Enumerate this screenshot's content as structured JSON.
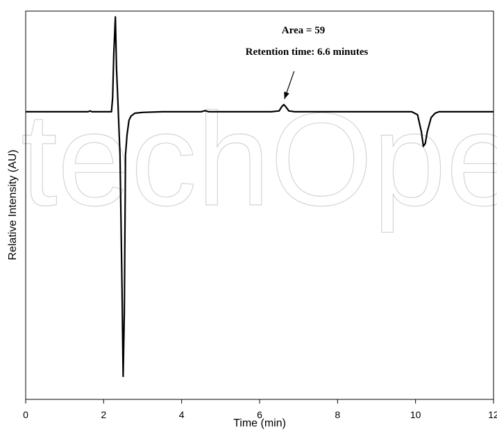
{
  "chart_data": {
    "type": "line",
    "xlabel": "Time (min)",
    "ylabel": "Relative Intensity (AU)",
    "xlim": [
      0,
      12
    ],
    "ylim": [
      -100,
      35
    ],
    "xticks": [
      0,
      2,
      4,
      6,
      8,
      10,
      12
    ],
    "grid": false,
    "legend": "none",
    "series_color": "#000000",
    "x": [
      0,
      1.6,
      1.65,
      1.7,
      2.2,
      2.23,
      2.26,
      2.3,
      2.33,
      2.37,
      2.42,
      2.47,
      2.5,
      2.53,
      2.56,
      2.6,
      2.65,
      2.7,
      2.8,
      3.0,
      3.5,
      4.5,
      4.6,
      4.7,
      5.5,
      6.3,
      6.5,
      6.57,
      6.62,
      6.67,
      6.75,
      6.9,
      8.0,
      9.9,
      10.05,
      10.15,
      10.2,
      10.25,
      10.3,
      10.4,
      10.5,
      10.6,
      12.0
    ],
    "y": [
      0,
      0,
      0.3,
      0,
      0,
      5,
      20,
      33,
      15,
      2,
      -15,
      -60,
      -92,
      -70,
      -15,
      -8,
      -3,
      -1.5,
      -0.5,
      -0.2,
      0,
      0,
      0.4,
      0,
      0,
      0,
      0.3,
      1.8,
      2.5,
      1.8,
      0.3,
      0,
      0,
      0,
      -1,
      -7,
      -12,
      -11,
      -7,
      -2,
      -0.5,
      0,
      0
    ],
    "annotations": [
      {
        "text": "Area = 59",
        "points_to": [
          6.6,
          2.5
        ]
      },
      {
        "text": "Retention time: 6.6 minutes",
        "points_to": [
          6.6,
          2.5
        ]
      }
    ]
  },
  "watermark": "techOpen"
}
